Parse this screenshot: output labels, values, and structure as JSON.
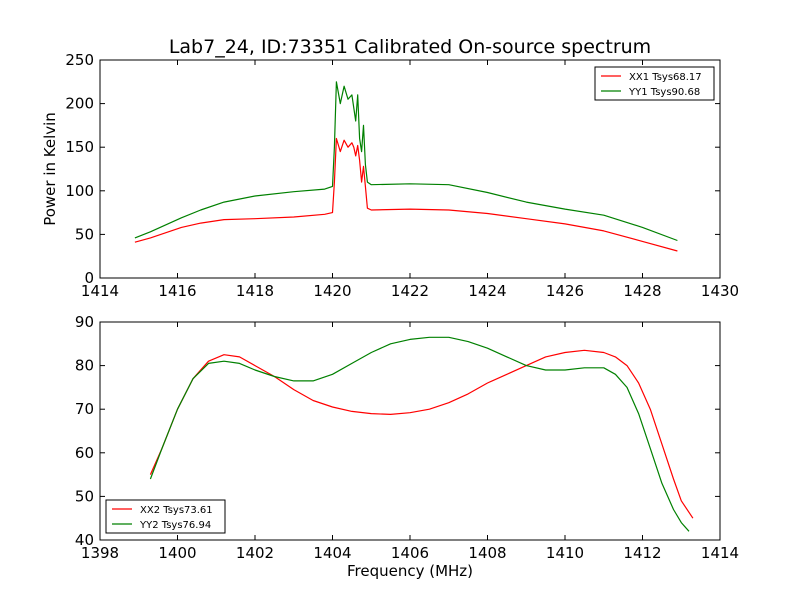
{
  "figure_title": "Lab7_24, ID:73351 Calibrated On-source spectrum",
  "chart_data": [
    {
      "type": "line",
      "xlabel": "",
      "ylabel": "Power in Kelvin",
      "xlim": [
        1414,
        1430
      ],
      "ylim": [
        0,
        250
      ],
      "xticks": [
        1414,
        1416,
        1418,
        1420,
        1422,
        1424,
        1426,
        1428,
        1430
      ],
      "yticks": [
        0,
        50,
        100,
        150,
        200,
        250
      ],
      "legend_position": "top-right",
      "grid": false,
      "series": [
        {
          "name": "XX1 Tsys68.17",
          "color": "#ff0000",
          "x": [
            1414.9,
            1415.3,
            1415.7,
            1416.1,
            1416.6,
            1417.2,
            1418.0,
            1419.0,
            1419.8,
            1420.0,
            1420.05,
            1420.1,
            1420.2,
            1420.3,
            1420.4,
            1420.5,
            1420.55,
            1420.6,
            1420.65,
            1420.7,
            1420.75,
            1420.8,
            1420.85,
            1420.9,
            1421.0,
            1422.0,
            1423.0,
            1424.0,
            1425.0,
            1426.0,
            1427.0,
            1428.0,
            1428.9
          ],
          "y": [
            41,
            46,
            52,
            58,
            63,
            67,
            68,
            70,
            73,
            75,
            110,
            160,
            145,
            158,
            150,
            155,
            150,
            140,
            152,
            135,
            110,
            128,
            105,
            80,
            78,
            79,
            78,
            74,
            68,
            62,
            54,
            42,
            31
          ]
        },
        {
          "name": "YY1 Tsys90.68",
          "color": "#008000",
          "x": [
            1414.9,
            1415.3,
            1415.7,
            1416.1,
            1416.6,
            1417.2,
            1418.0,
            1419.0,
            1419.8,
            1420.0,
            1420.05,
            1420.1,
            1420.2,
            1420.3,
            1420.4,
            1420.5,
            1420.55,
            1420.6,
            1420.65,
            1420.7,
            1420.75,
            1420.8,
            1420.85,
            1420.9,
            1421.0,
            1422.0,
            1423.0,
            1424.0,
            1425.0,
            1426.0,
            1427.0,
            1428.0,
            1428.9
          ],
          "y": [
            46,
            53,
            61,
            69,
            78,
            87,
            94,
            99,
            102,
            105,
            150,
            225,
            200,
            220,
            205,
            210,
            195,
            180,
            210,
            160,
            145,
            175,
            130,
            110,
            107,
            108,
            107,
            98,
            87,
            79,
            72,
            58,
            43
          ]
        }
      ]
    },
    {
      "type": "line",
      "xlabel": "Frequency (MHz)",
      "ylabel": "",
      "xlim": [
        1398,
        1414
      ],
      "ylim": [
        40,
        90
      ],
      "xticks": [
        1398,
        1400,
        1402,
        1404,
        1406,
        1408,
        1410,
        1412,
        1414
      ],
      "yticks": [
        40,
        50,
        60,
        70,
        80,
        90
      ],
      "legend_position": "bottom-left",
      "grid": false,
      "series": [
        {
          "name": "XX2 Tsys73.61",
          "color": "#ff0000",
          "x": [
            1399.3,
            1399.6,
            1400.0,
            1400.4,
            1400.8,
            1401.2,
            1401.6,
            1402.0,
            1402.5,
            1403.0,
            1403.5,
            1404.0,
            1404.5,
            1405.0,
            1405.5,
            1406.0,
            1406.5,
            1407.0,
            1407.5,
            1408.0,
            1408.5,
            1409.0,
            1409.5,
            1410.0,
            1410.5,
            1411.0,
            1411.3,
            1411.6,
            1411.9,
            1412.2,
            1412.5,
            1412.8,
            1413.0,
            1413.3
          ],
          "y": [
            55,
            61,
            70,
            77,
            81,
            82.5,
            82,
            80,
            77.5,
            74.5,
            72,
            70.5,
            69.5,
            69,
            68.8,
            69.2,
            70,
            71.5,
            73.5,
            76,
            78,
            80,
            82,
            83,
            83.5,
            83,
            82,
            80,
            76,
            70,
            62,
            54,
            49,
            45
          ]
        },
        {
          "name": "YY2 Tsys76.94",
          "color": "#008000",
          "x": [
            1399.3,
            1399.6,
            1400.0,
            1400.4,
            1400.8,
            1401.2,
            1401.6,
            1402.0,
            1402.5,
            1403.0,
            1403.5,
            1404.0,
            1404.5,
            1405.0,
            1405.5,
            1406.0,
            1406.5,
            1407.0,
            1407.5,
            1408.0,
            1408.5,
            1409.0,
            1409.5,
            1410.0,
            1410.5,
            1411.0,
            1411.3,
            1411.6,
            1411.9,
            1412.2,
            1412.5,
            1412.8,
            1413.0,
            1413.2
          ],
          "y": [
            54,
            61,
            70,
            77,
            80.5,
            81,
            80.5,
            79,
            77.5,
            76.5,
            76.5,
            78,
            80.5,
            83,
            85,
            86,
            86.5,
            86.5,
            85.5,
            84,
            82,
            80,
            79,
            79,
            79.5,
            79.5,
            78,
            75,
            69,
            61,
            53,
            47,
            44,
            42
          ]
        }
      ]
    }
  ]
}
